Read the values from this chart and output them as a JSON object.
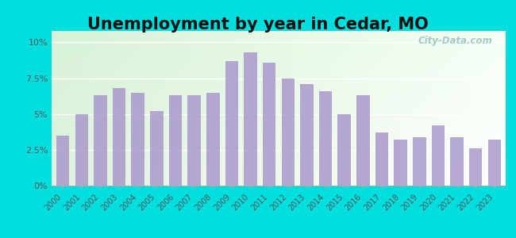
{
  "title": "Unemployment by year in Cedar, MO",
  "years": [
    2000,
    2001,
    2002,
    2003,
    2004,
    2005,
    2006,
    2007,
    2008,
    2009,
    2010,
    2011,
    2012,
    2013,
    2014,
    2015,
    2016,
    2017,
    2018,
    2019,
    2020,
    2021,
    2022,
    2023
  ],
  "values": [
    3.5,
    5.0,
    6.3,
    6.8,
    6.5,
    5.2,
    6.3,
    6.3,
    6.5,
    8.7,
    9.3,
    8.6,
    7.5,
    7.1,
    6.6,
    5.0,
    6.3,
    3.7,
    3.2,
    3.4,
    4.2,
    3.4,
    2.6,
    3.2
  ],
  "bar_color": "#aa99cc",
  "yticks": [
    0,
    2.5,
    5.0,
    7.5,
    10.0
  ],
  "ytick_labels": [
    "0%",
    "2.5%",
    "5%",
    "7.5%",
    "10%"
  ],
  "ylim": [
    0,
    10.8
  ],
  "title_fontsize": 15,
  "bg_outer": "#00dede",
  "bg_plot": "#e8f5e8",
  "watermark_text": "City-Data.com"
}
